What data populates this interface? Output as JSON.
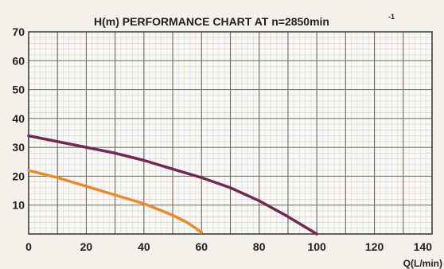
{
  "chart_data": {
    "type": "line",
    "title": "H(m) PERFORMANCE CHART AT n=2850min",
    "title_superscript": "-1",
    "xlabel": "Q(L/min)",
    "ylabel": "",
    "xlim": [
      0,
      140
    ],
    "ylim": [
      0,
      70
    ],
    "x_ticks": [
      0,
      20,
      40,
      60,
      80,
      100,
      120,
      140
    ],
    "y_ticks": [
      10,
      20,
      30,
      40,
      50,
      60,
      70
    ],
    "grid": true,
    "series": [
      {
        "color": "#e88a2e",
        "x": [
          0,
          10,
          20,
          30,
          40,
          50,
          55,
          58,
          60
        ],
        "y": [
          22,
          19.5,
          16.5,
          13.5,
          10.5,
          6.5,
          4,
          2,
          0.5
        ]
      },
      {
        "color": "#6e2a55",
        "x": [
          0,
          10,
          20,
          30,
          40,
          50,
          60,
          70,
          80,
          90,
          95,
          100
        ],
        "y": [
          34,
          32,
          30,
          28,
          25.5,
          22.5,
          19.5,
          16,
          11.5,
          6,
          3,
          0
        ]
      }
    ]
  }
}
